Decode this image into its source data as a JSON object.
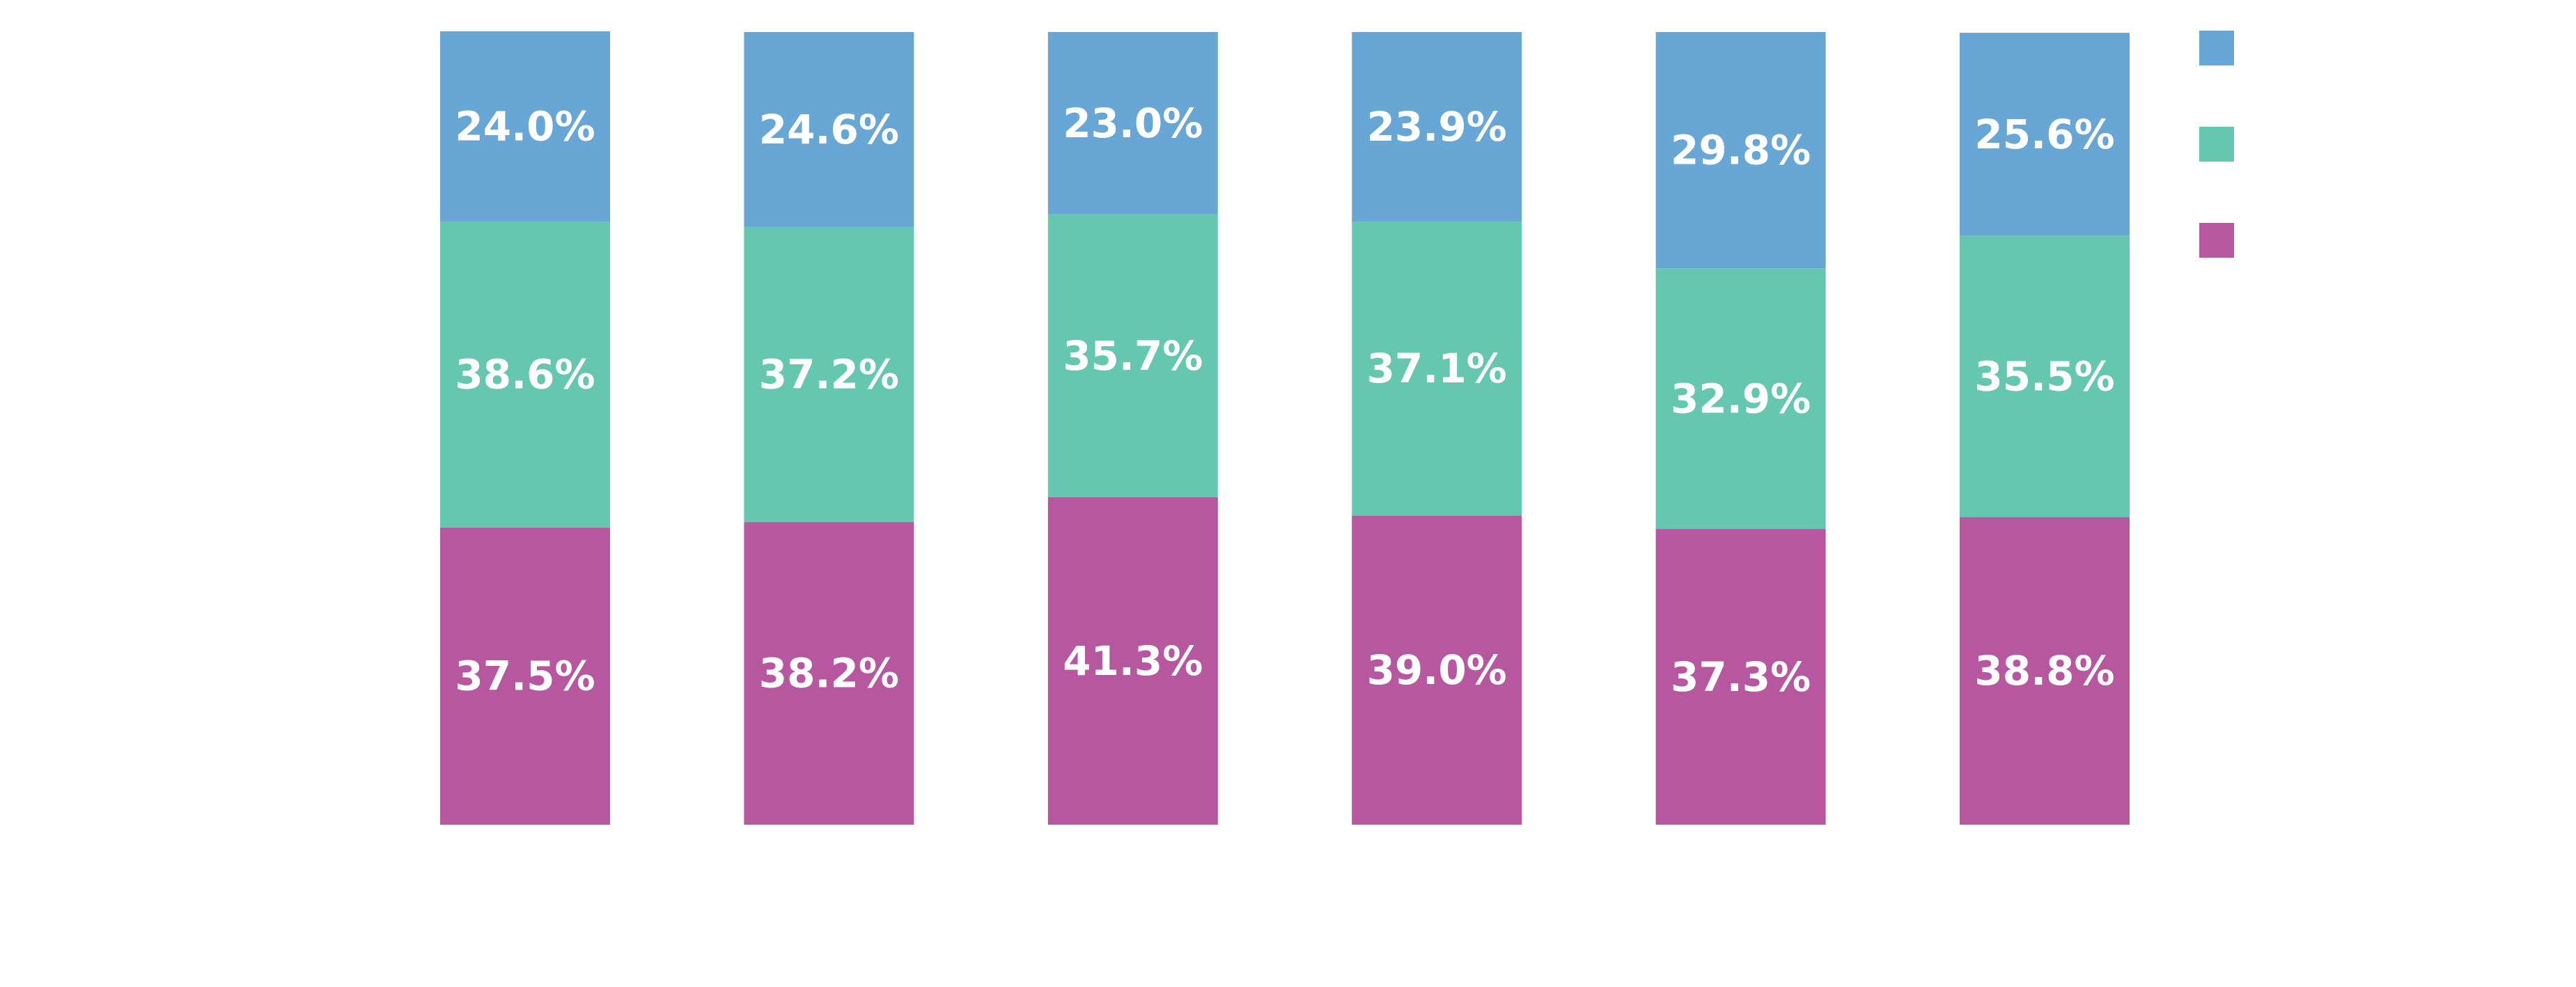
{
  "chart_data": {
    "type": "bar",
    "stacked": true,
    "orientation": "vertical",
    "title": "",
    "xlabel": "",
    "ylabel": "",
    "ylim": [
      0,
      100
    ],
    "grid": false,
    "legend_placement": "top-right",
    "categories": [
      "",
      "",
      "",
      "",
      "",
      ""
    ],
    "series": [
      {
        "name": "",
        "color": "#b657a0",
        "values": [
          37.5,
          38.2,
          41.3,
          39.0,
          37.3,
          38.8
        ],
        "labels": [
          "37.5%",
          "38.2%",
          "41.3%",
          "39.0%",
          "37.3%",
          "38.8%"
        ]
      },
      {
        "name": "",
        "color": "#66c7b0",
        "values": [
          38.6,
          37.2,
          35.7,
          37.1,
          32.9,
          35.5
        ],
        "labels": [
          "38.6%",
          "37.2%",
          "35.7%",
          "37.1%",
          "32.9%",
          "35.5%"
        ]
      },
      {
        "name": "",
        "color": "#68a6d6",
        "values": [
          24.0,
          24.6,
          23.0,
          23.9,
          29.8,
          25.6
        ],
        "labels": [
          "24.0%",
          "24.6%",
          "23.0%",
          "23.9%",
          "29.8%",
          "25.6%"
        ]
      }
    ],
    "legend_order": [
      2,
      1,
      0
    ]
  }
}
